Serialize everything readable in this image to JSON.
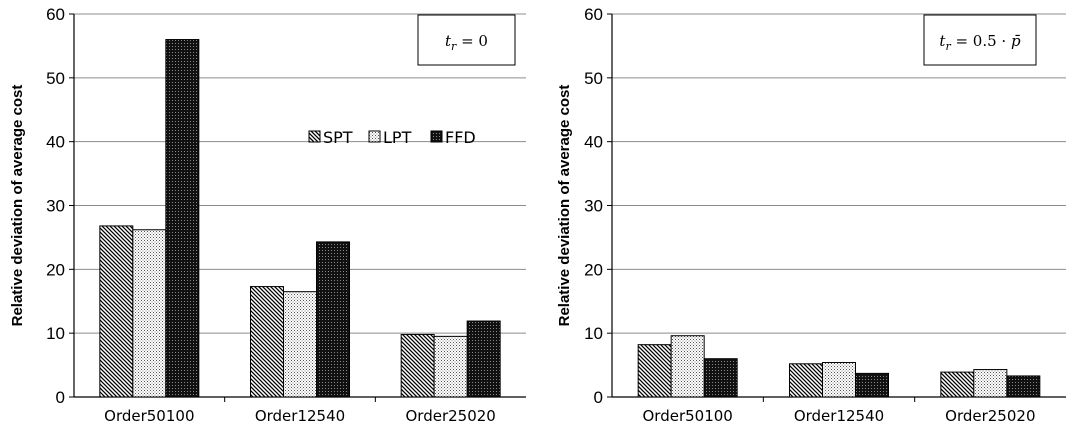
{
  "chart_data": [
    {
      "type": "bar",
      "title": "",
      "annotation": {
        "var": "t",
        "sub": "r",
        "rest": " = 0"
      },
      "xlabel": "",
      "ylabel": "Relative deviation of average cost",
      "ylim": [
        0,
        60
      ],
      "yticks": [
        0,
        10,
        20,
        30,
        40,
        50,
        60
      ],
      "categories": [
        "Order50100",
        "Order12540",
        "Order25020"
      ],
      "series": [
        {
          "name": "SPT",
          "pattern": "diagonal",
          "values": [
            26.8,
            17.3,
            9.8
          ]
        },
        {
          "name": "LPT",
          "pattern": "dotted",
          "values": [
            26.2,
            16.5,
            9.5
          ]
        },
        {
          "name": "FFD",
          "pattern": "dark",
          "values": [
            56.0,
            24.3,
            11.9
          ]
        }
      ],
      "legend": "top-right",
      "grid": true
    },
    {
      "type": "bar",
      "title": "",
      "annotation": {
        "var": "t",
        "sub": "r",
        "rest": " = 0.5 · ",
        "tail": "p̄"
      },
      "xlabel": "",
      "ylabel": "Relative deviation of average cost",
      "ylim": [
        0,
        60
      ],
      "yticks": [
        0,
        10,
        20,
        30,
        40,
        50,
        60
      ],
      "categories": [
        "Order50100",
        "Order12540",
        "Order25020"
      ],
      "series": [
        {
          "name": "SPT",
          "pattern": "diagonal",
          "values": [
            8.2,
            5.2,
            3.9
          ]
        },
        {
          "name": "LPT",
          "pattern": "dotted",
          "values": [
            9.6,
            5.4,
            4.3
          ]
        },
        {
          "name": "FFD",
          "pattern": "dark",
          "values": [
            6.0,
            3.7,
            3.3
          ]
        }
      ],
      "legend": "none",
      "grid": true
    }
  ]
}
